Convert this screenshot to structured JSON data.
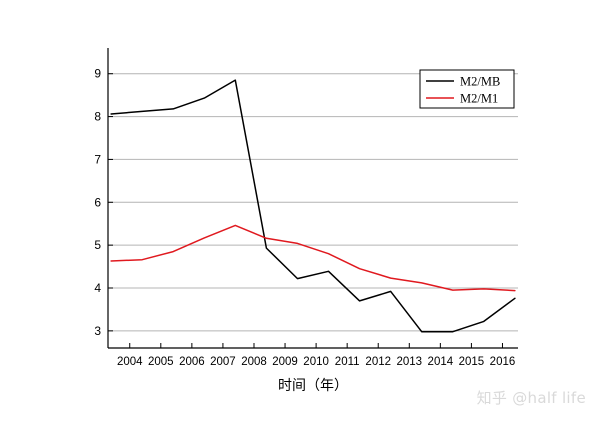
{
  "chart_data": {
    "type": "line",
    "title": "",
    "xlabel": "时间（年）",
    "ylabel": "",
    "x_ticks": [
      "2004",
      "2005",
      "2006",
      "2007",
      "2008",
      "2009",
      "2010",
      "2011",
      "2012",
      "2013",
      "2014",
      "2015",
      "2016"
    ],
    "y_ticks": [
      3,
      4,
      5,
      6,
      7,
      8,
      9
    ],
    "xlim": [
      2003.3,
      2016.5
    ],
    "ylim": [
      2.6,
      9.6
    ],
    "grid": true,
    "legend": {
      "position": "top-right"
    },
    "series": [
      {
        "name": "M2/MB",
        "color": "#000000",
        "points": [
          [
            2003.4,
            8.06
          ],
          [
            2004.4,
            8.12
          ],
          [
            2005.4,
            8.18
          ],
          [
            2006.4,
            8.43
          ],
          [
            2007.4,
            8.85
          ],
          [
            2008.4,
            4.93
          ],
          [
            2009.4,
            4.22
          ],
          [
            2010.4,
            4.39
          ],
          [
            2011.4,
            3.7
          ],
          [
            2012.4,
            3.92
          ],
          [
            2013.4,
            2.98
          ],
          [
            2014.4,
            2.98
          ],
          [
            2015.4,
            3.22
          ],
          [
            2016.4,
            3.76
          ]
        ]
      },
      {
        "name": "M2/M1",
        "color": "#e0191f",
        "points": [
          [
            2003.4,
            4.63
          ],
          [
            2004.4,
            4.66
          ],
          [
            2005.4,
            4.85
          ],
          [
            2006.4,
            5.17
          ],
          [
            2007.4,
            5.46
          ],
          [
            2008.4,
            5.16
          ],
          [
            2009.4,
            5.04
          ],
          [
            2010.4,
            4.8
          ],
          [
            2011.4,
            4.45
          ],
          [
            2012.4,
            4.23
          ],
          [
            2013.4,
            4.12
          ],
          [
            2014.4,
            3.95
          ],
          [
            2015.4,
            3.98
          ],
          [
            2016.4,
            3.94
          ]
        ]
      }
    ]
  },
  "watermark": "知乎 @half life"
}
